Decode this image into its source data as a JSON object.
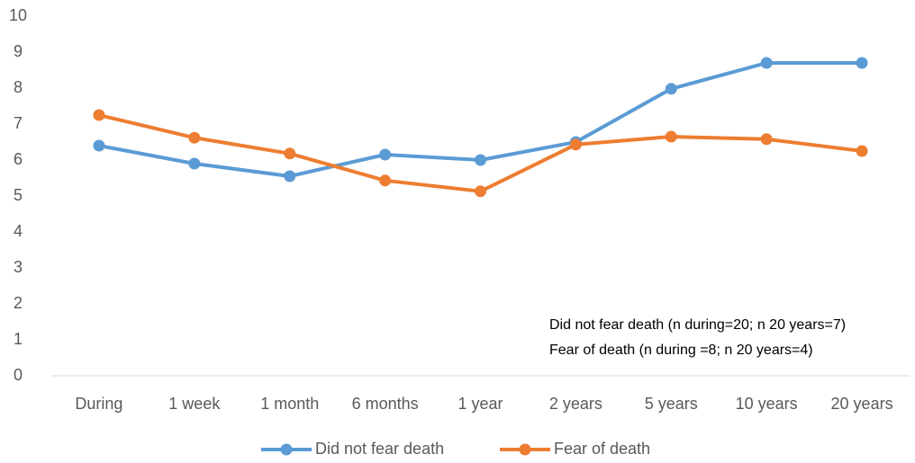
{
  "chart_data": {
    "type": "line",
    "categories": [
      "During",
      "1 week",
      "1 month",
      "6 months",
      "1 year",
      "2 years",
      "5 years",
      "10 years",
      "20 years"
    ],
    "series": [
      {
        "name": "Did not fear death",
        "color": "#5b9bd5",
        "values": [
          6.4,
          5.9,
          5.55,
          6.15,
          6.0,
          6.5,
          7.98,
          8.7,
          8.7
        ]
      },
      {
        "name": "Fear of death",
        "color": "#ed7d31",
        "values": [
          7.25,
          6.62,
          6.18,
          5.43,
          5.13,
          6.43,
          6.65,
          6.58,
          6.25
        ]
      }
    ],
    "ylim": [
      0,
      10
    ],
    "yticks": [
      0,
      1,
      2,
      3,
      4,
      5,
      6,
      7,
      8,
      9,
      10
    ],
    "annotations": [
      "Did not fear death (n  during=20; n 20 years=7)",
      "Fear of death (n during =8; n 20 years=4)"
    ],
    "legend": "bottom",
    "grid": false
  }
}
